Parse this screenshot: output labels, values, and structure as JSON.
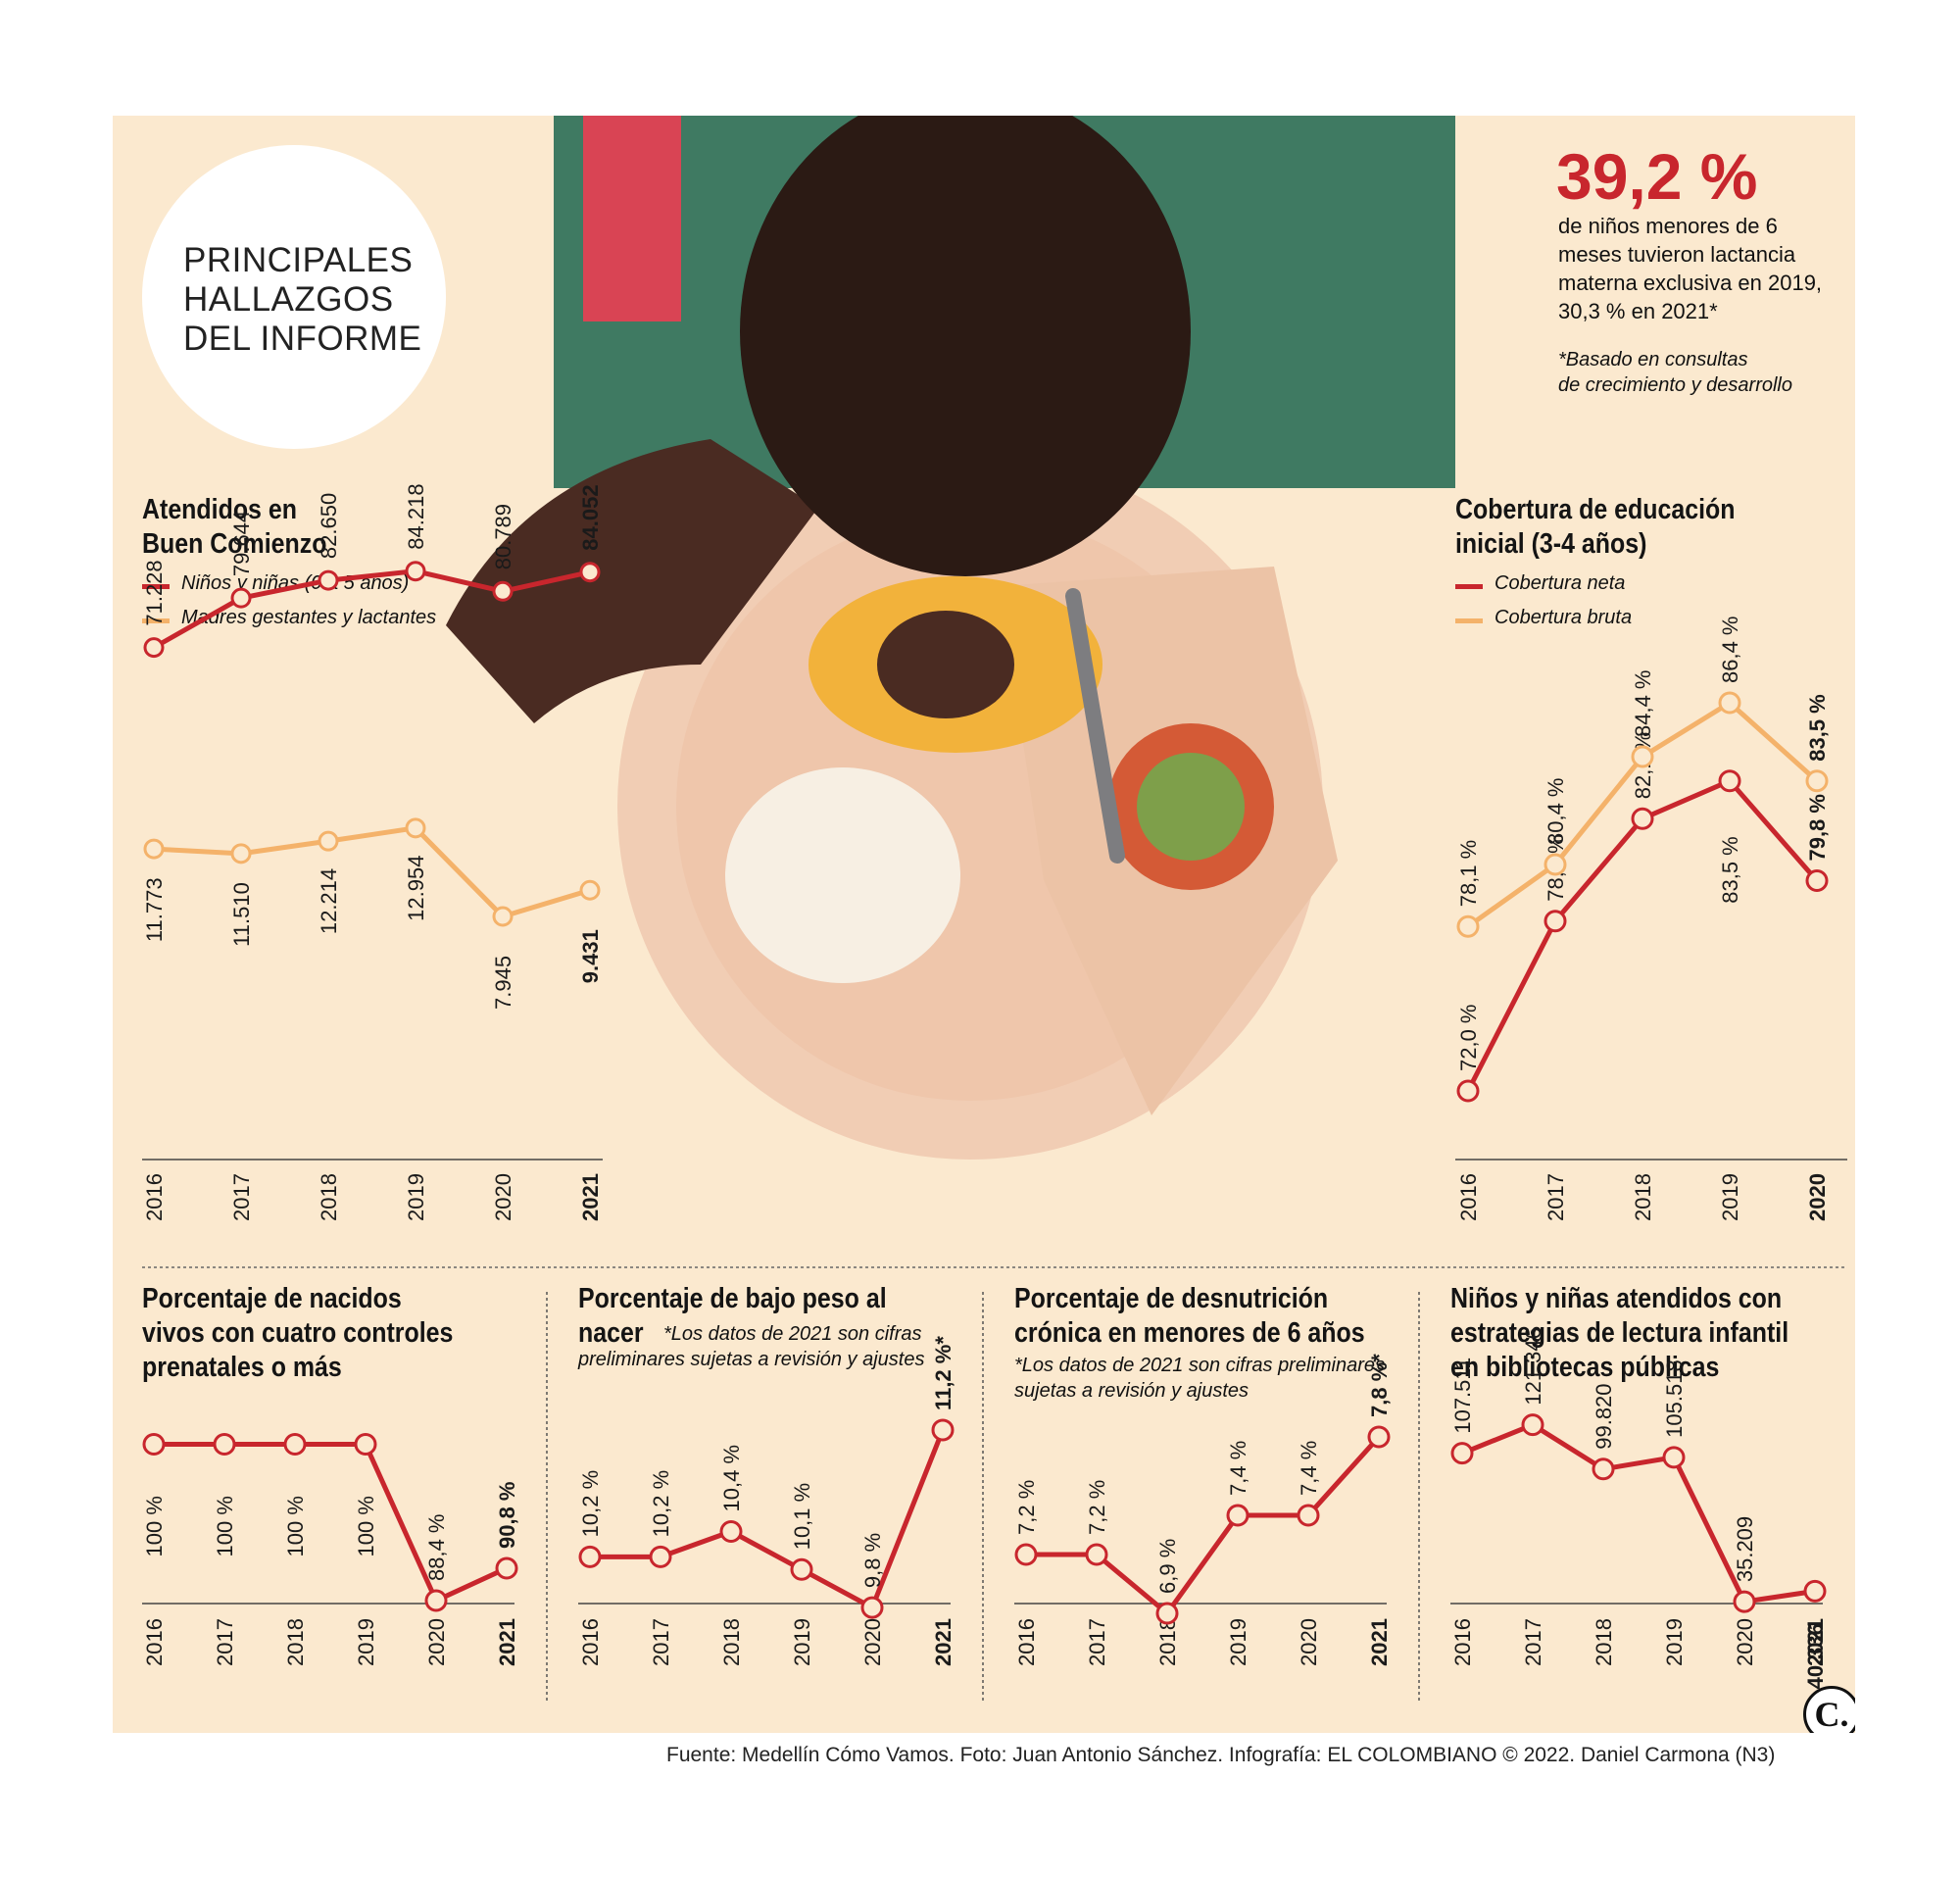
{
  "highlight": {
    "lines": [
      "PRINCIPALES",
      "HALLAZGOS",
      "DEL INFORME"
    ]
  },
  "stat": {
    "value": "39,2 %",
    "description_lines": [
      "de niños menores de 6",
      "meses tuvieron lactancia",
      "materna exclusiva en 2019,",
      "30,3 % en 2021*"
    ],
    "note_lines": [
      "*Basado en consultas",
      "de crecimiento y desarrollo"
    ]
  },
  "colors": {
    "red": "#c8262d",
    "orange": "#f4b26a",
    "panel": "#fbe9cf"
  },
  "source": "Fuente: Medellín Cómo Vamos. Foto: Juan Antonio Sánchez. Infografía: EL COLOMBIANO © 2022. Daniel Carmona (N3)",
  "logo": "C.",
  "chart_data": [
    {
      "id": "atendidos",
      "type": "line",
      "title_lines": [
        "Atendidos en",
        "Buen Comienzo"
      ],
      "categories": [
        "2016",
        "2017",
        "2018",
        "2019",
        "2020",
        "2021"
      ],
      "series": [
        {
          "name": "Niños y niñas (0 a 5 años)",
          "color": "#c8262d",
          "values": [
            71228,
            79644,
            82650,
            84218,
            80789,
            84052
          ],
          "labels": [
            "71.228",
            "79.644",
            "82.650",
            "84.218",
            "80.789",
            "84.052"
          ]
        },
        {
          "name": "Madres gestantes y lactantes",
          "color": "#f4b26a",
          "values": [
            11773,
            11510,
            12214,
            12954,
            7945,
            9431
          ],
          "labels": [
            "11.773",
            "11.510",
            "12.214",
            "12.954",
            "7.945",
            "9.431"
          ]
        }
      ]
    },
    {
      "id": "cobertura",
      "type": "line",
      "title_lines": [
        "Cobertura de educación",
        "inicial (3-4 años)"
      ],
      "categories": [
        "2016",
        "2017",
        "2018",
        "2019",
        "2020"
      ],
      "series": [
        {
          "name": "Cobertura neta",
          "color": "#c8262d",
          "values": [
            72.0,
            78.3,
            82.1,
            83.5,
            79.8
          ],
          "labels": [
            "72,0 %",
            "78,3 %",
            "82,1 %",
            "83,5 %",
            "79,8 %"
          ]
        },
        {
          "name": "Cobertura bruta",
          "color": "#f4b26a",
          "values": [
            78.1,
            80.4,
            84.4,
            86.4,
            83.5
          ],
          "labels": [
            "78,1 %",
            "80,4 %",
            "84,4 %",
            "86,4 %",
            "83,5 %"
          ]
        }
      ]
    },
    {
      "id": "prenatales",
      "type": "line",
      "title_lines": [
        "Porcentaje de nacidos",
        "vivos con cuatro controles",
        "prenatales o más"
      ],
      "categories": [
        "2016",
        "2017",
        "2018",
        "2019",
        "2020",
        "2021"
      ],
      "series": [
        {
          "color": "#c8262d",
          "values": [
            100,
            100,
            100,
            100,
            88.4,
            90.8
          ],
          "labels": [
            "100 %",
            "100 %",
            "100 %",
            "100 %",
            "88,4 %",
            "90,8 %"
          ]
        }
      ]
    },
    {
      "id": "bajopeso",
      "type": "line",
      "title_lines": [
        "Porcentaje de bajo peso al",
        "nacer"
      ],
      "note_lines": [
        "*Los datos de 2021 son cifras",
        "preliminares sujetas a revisión y ajustes"
      ],
      "categories": [
        "2016",
        "2017",
        "2018",
        "2019",
        "2020",
        "2021"
      ],
      "series": [
        {
          "color": "#c8262d",
          "values": [
            10.2,
            10.2,
            10.4,
            10.1,
            9.8,
            11.2
          ],
          "labels": [
            "10,2 %",
            "10,2 %",
            "10,4 %",
            "10,1 %",
            "9,8 %",
            "11,2 %*"
          ]
        }
      ]
    },
    {
      "id": "desnutricion",
      "type": "line",
      "title_lines": [
        "Porcentaje de desnutrición",
        "crónica en menores de 6 años"
      ],
      "note_lines": [
        "*Los datos de 2021 son cifras preliminares",
        "sujetas a revisión y ajustes"
      ],
      "categories": [
        "2016",
        "2017",
        "2018",
        "2019",
        "2020",
        "2021"
      ],
      "series": [
        {
          "color": "#c8262d",
          "values": [
            7.2,
            7.2,
            6.9,
            7.4,
            7.4,
            7.8
          ],
          "labels": [
            "7,2 %",
            "7,2 %",
            "6,9 %",
            "7,4 %",
            "7,4 %",
            "7,8 %*"
          ]
        }
      ]
    },
    {
      "id": "lectura",
      "type": "line",
      "title_lines": [
        "Niños y niñas atendidos con",
        "estrategias de lectura infantil",
        "en bibliotecas públicas"
      ],
      "categories": [
        "2016",
        "2017",
        "2018",
        "2019",
        "2020",
        "2021"
      ],
      "series": [
        {
          "color": "#c8262d",
          "values": [
            107511,
            121346,
            99820,
            105518,
            35209,
            40336
          ],
          "labels": [
            "107.511",
            "121.346",
            "99.820",
            "105.518",
            "35.209",
            "40.336"
          ]
        }
      ]
    }
  ]
}
